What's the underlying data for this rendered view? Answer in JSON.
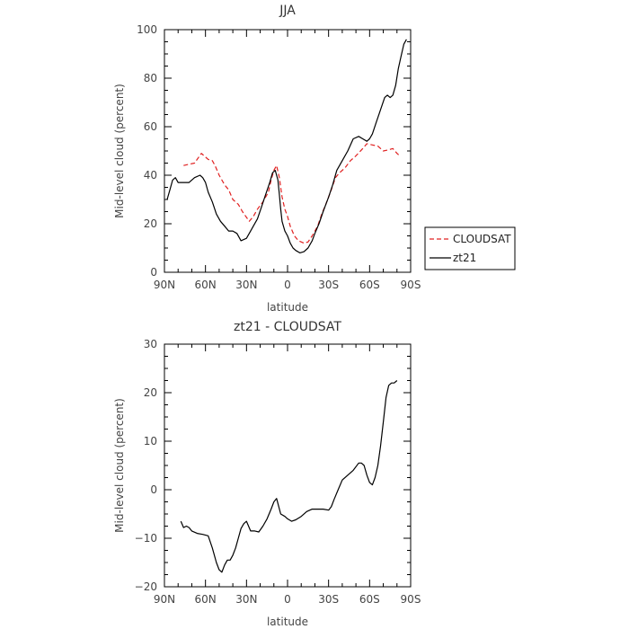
{
  "chart_data": [
    {
      "type": "line",
      "title": "JJA",
      "xlabel": "latitude",
      "ylabel": "Mid-level cloud (percent)",
      "xlim": [
        90,
        -90
      ],
      "ylim": [
        0,
        100
      ],
      "xticks": [
        90,
        60,
        30,
        0,
        -30,
        -60,
        -90
      ],
      "xtick_labels": [
        "90N",
        "60N",
        "30N",
        "0",
        "30S",
        "60S",
        "90S"
      ],
      "yticks": [
        0,
        20,
        40,
        60,
        80,
        100
      ],
      "ytick_labels": [
        "0",
        "20",
        "40",
        "60",
        "80",
        "100"
      ],
      "grid": false,
      "legend": "right",
      "series": [
        {
          "name": "CLOUDSAT",
          "color": "#e02020",
          "dash": "dashed",
          "x": [
            76,
            72,
            68,
            63,
            58,
            55,
            53,
            50,
            46,
            43,
            40,
            36,
            33,
            28,
            25,
            22,
            18,
            14,
            12,
            10,
            8,
            6,
            4,
            2,
            0,
            -2,
            -5,
            -8,
            -12,
            -15,
            -18,
            -22,
            -25,
            -28,
            -32,
            -35,
            -38,
            -42,
            -46,
            -50,
            -55,
            -58,
            -62,
            -66,
            -70,
            -74,
            -77,
            -80,
            -82
          ],
          "y": [
            44,
            44.5,
            45,
            49,
            46.5,
            46,
            44,
            40,
            36,
            34,
            30,
            28,
            25,
            21,
            23,
            26,
            29,
            33,
            38,
            42,
            44,
            39,
            31,
            26,
            23,
            19,
            15,
            13,
            12,
            12.5,
            15,
            19,
            24,
            28,
            34,
            39,
            41,
            43,
            46,
            48,
            51,
            53,
            52.5,
            52,
            50,
            50.5,
            51,
            49,
            48
          ]
        },
        {
          "name": "zt21",
          "color": "#000000",
          "dash": "solid",
          "x": [
            88,
            86,
            84,
            82,
            80,
            76,
            72,
            68,
            64,
            62,
            60,
            58,
            55,
            52,
            49,
            46,
            43,
            40,
            37,
            34,
            30,
            27,
            25,
            22,
            19,
            16,
            13,
            11,
            9,
            7,
            6,
            5,
            4,
            2,
            0,
            -2,
            -4,
            -6,
            -9,
            -12,
            -15,
            -18,
            -20,
            -23,
            -26,
            -30,
            -33,
            -36,
            -40,
            -44,
            -48,
            -52,
            -55,
            -58,
            -60,
            -62,
            -65,
            -68,
            -71,
            -73,
            -75,
            -77,
            -79,
            -81,
            -83,
            -85,
            -87
          ],
          "y": [
            30,
            34,
            38,
            39,
            37,
            37,
            37,
            39,
            40,
            39,
            37,
            33,
            29,
            24,
            21,
            19,
            17,
            17,
            16,
            13,
            14,
            17,
            19,
            22,
            27,
            32,
            37,
            41,
            42,
            38,
            32,
            26,
            21,
            17,
            15,
            12,
            10,
            9,
            8,
            8.5,
            10,
            13,
            16,
            20,
            25,
            31,
            36,
            42,
            46,
            50,
            55,
            56,
            55,
            54,
            55,
            57,
            62,
            67,
            72,
            73,
            72,
            73,
            77,
            84,
            89,
            94,
            96
          ]
        }
      ]
    },
    {
      "type": "line",
      "title": "zt21 - CLOUDSAT",
      "xlabel": "latitude",
      "ylabel": "Mid-level cloud (percent)",
      "xlim": [
        90,
        -90
      ],
      "ylim": [
        -20,
        30
      ],
      "xticks": [
        90,
        60,
        30,
        0,
        -30,
        -60,
        -90
      ],
      "xtick_labels": [
        "90N",
        "60N",
        "30N",
        "0",
        "30S",
        "60S",
        "90S"
      ],
      "yticks": [
        -20,
        -10,
        0,
        10,
        20,
        30
      ],
      "ytick_labels": [
        "−20",
        "−10",
        "0",
        "10",
        "20",
        "30"
      ],
      "grid": false,
      "series": [
        {
          "color": "#000000",
          "dash": "solid",
          "x": [
            78,
            76,
            74,
            72,
            70,
            66,
            62,
            58,
            55,
            52,
            50,
            48,
            46,
            44,
            42,
            40,
            38,
            36,
            34,
            32,
            30,
            27,
            24,
            21,
            18,
            15,
            12,
            10,
            8,
            5,
            2,
            0,
            -3,
            -6,
            -10,
            -14,
            -18,
            -22,
            -26,
            -30,
            -32,
            -34,
            -37,
            -40,
            -44,
            -48,
            -52,
            -54,
            -56,
            -58,
            -60,
            -62,
            -64,
            -66,
            -68,
            -70,
            -72,
            -74,
            -76,
            -78,
            -80
          ],
          "y": [
            -6.5,
            -7.8,
            -7.5,
            -7.8,
            -8.5,
            -9,
            -9.2,
            -9.5,
            -12,
            -15,
            -16.5,
            -17,
            -15.5,
            -14.5,
            -14.5,
            -13.5,
            -12,
            -10,
            -8,
            -7,
            -6.5,
            -8.5,
            -8.5,
            -8.7,
            -7.5,
            -6,
            -4,
            -2.5,
            -1.8,
            -5,
            -5.5,
            -6,
            -6.5,
            -6.2,
            -5.5,
            -4.5,
            -4,
            -4,
            -4,
            -4.2,
            -3.5,
            -2,
            0,
            2,
            3,
            4,
            5.5,
            5.5,
            5,
            3,
            1.5,
            1,
            2.5,
            5,
            9,
            14,
            19,
            21.5,
            22,
            22,
            22.5
          ]
        }
      ]
    }
  ]
}
